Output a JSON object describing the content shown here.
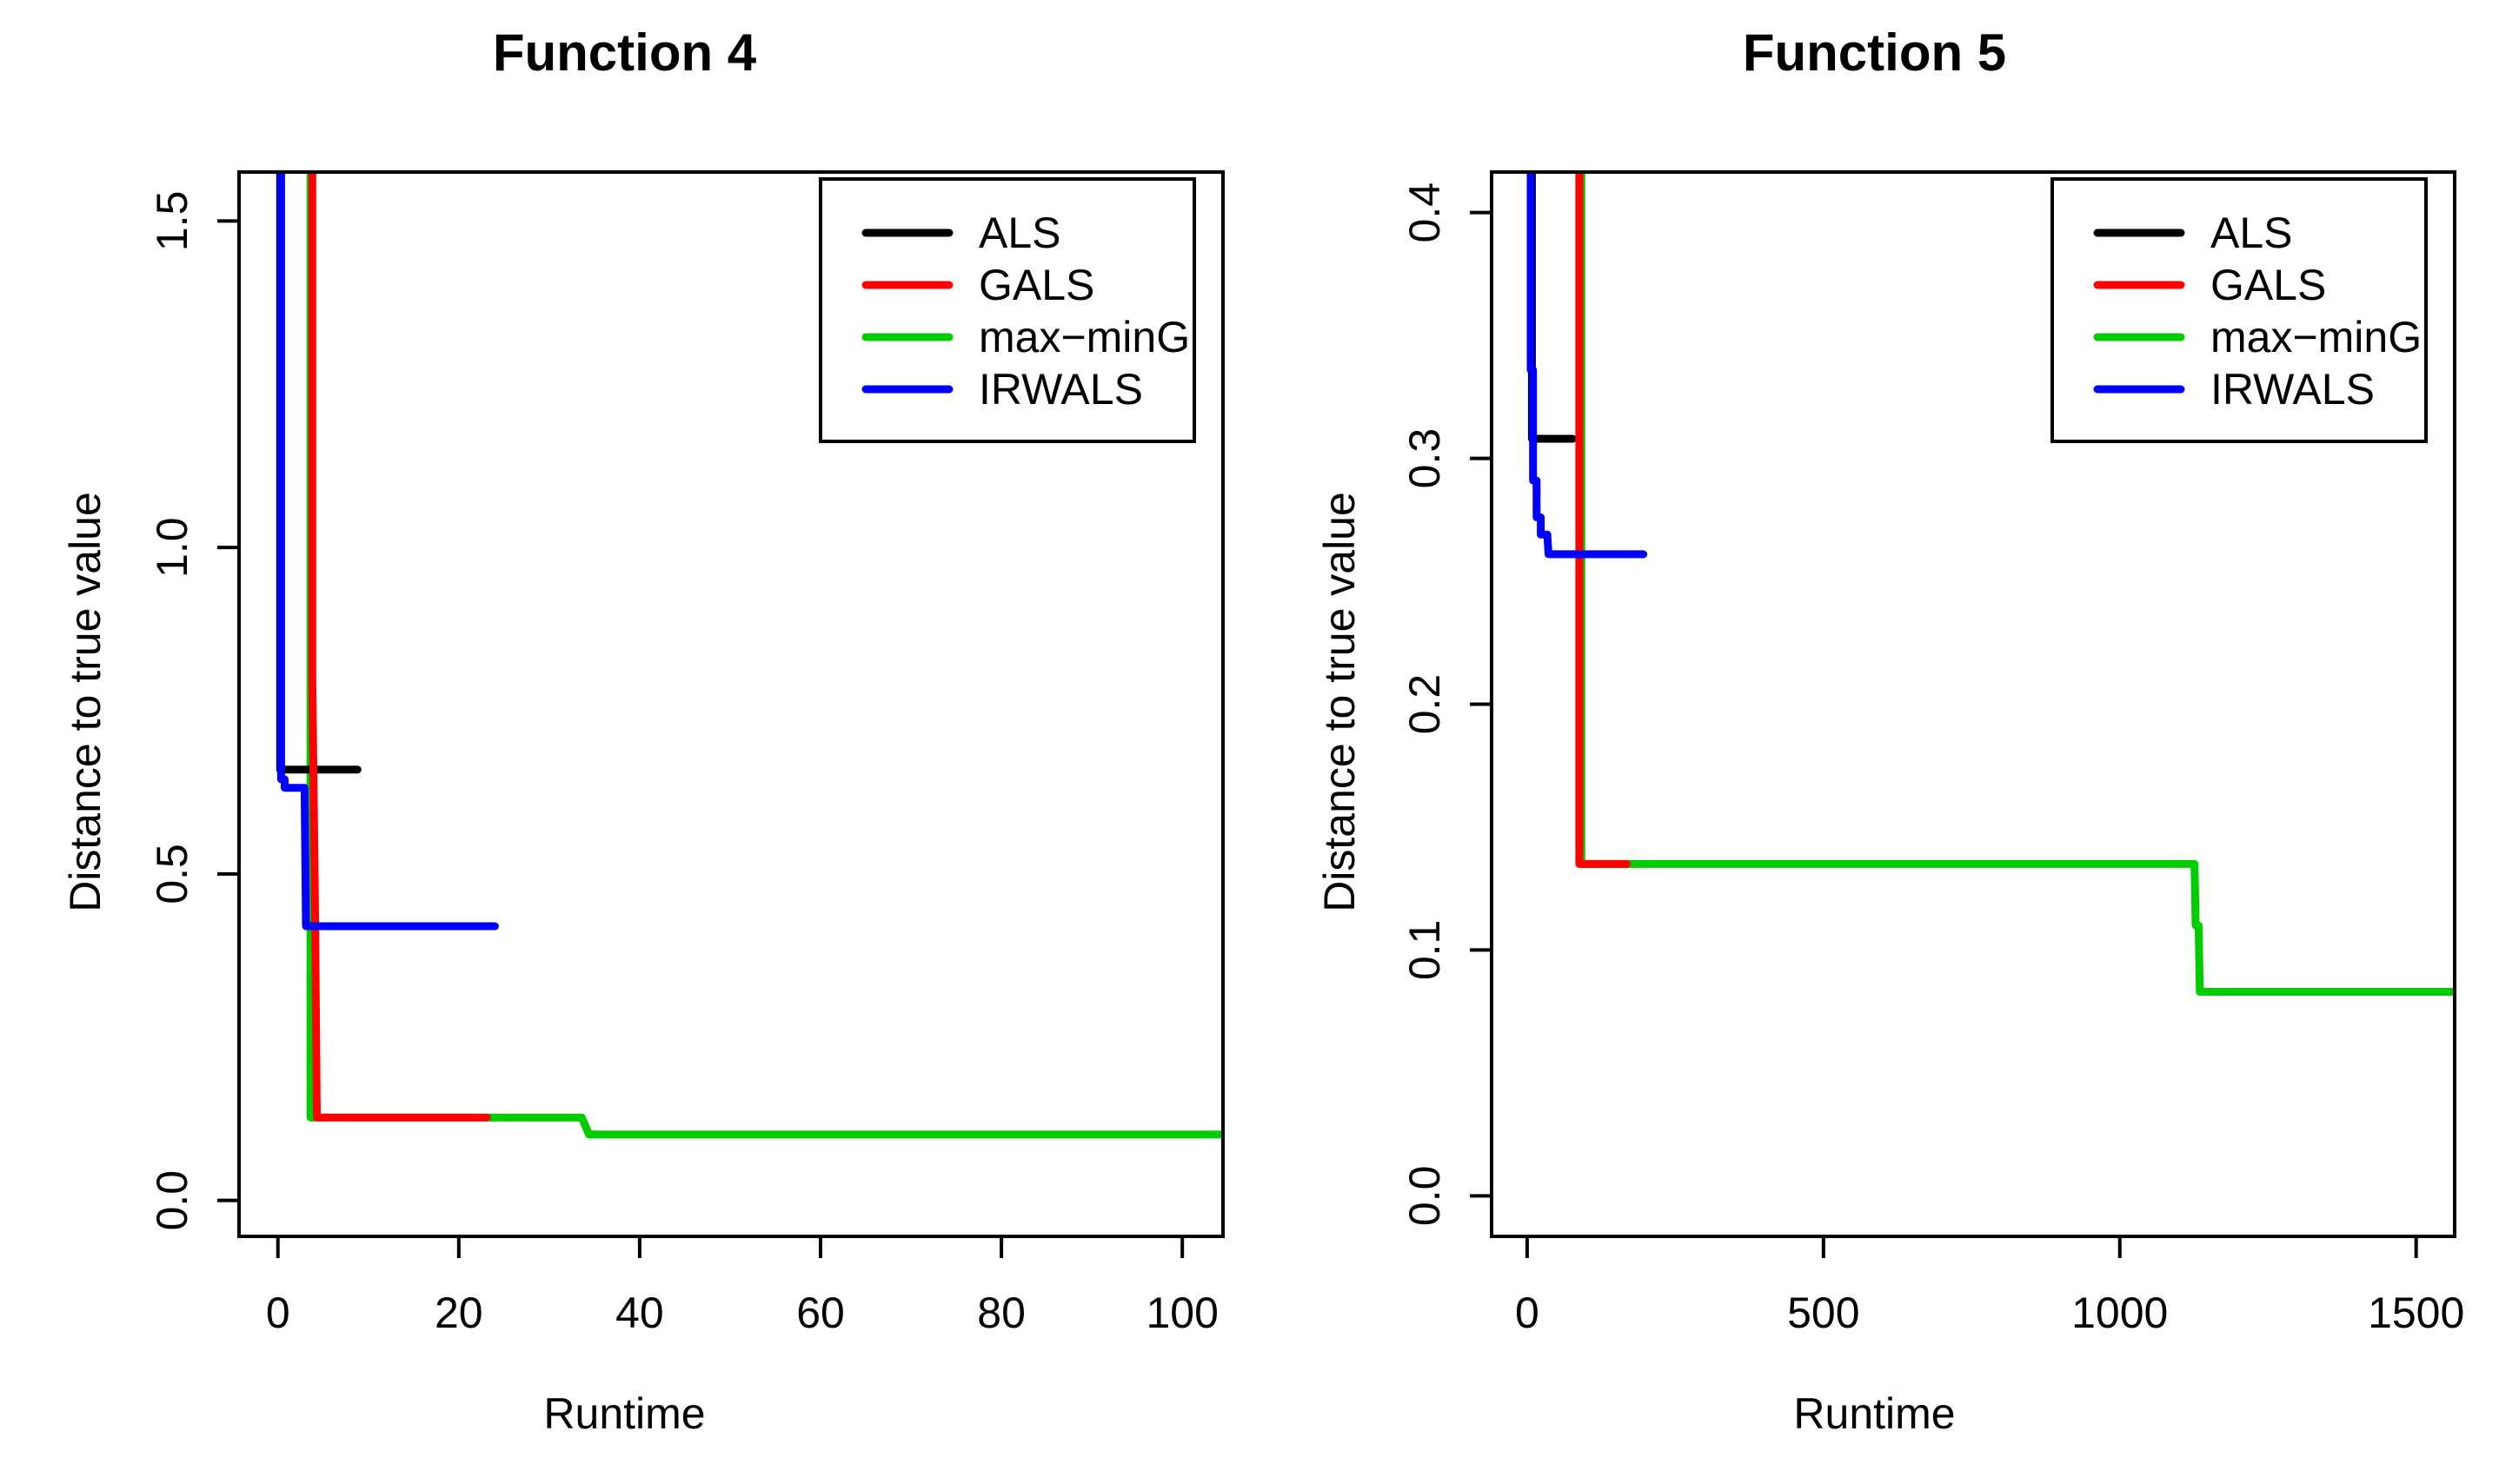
{
  "figure": {
    "background": "#ffffff",
    "axis_color": "#000000",
    "text_color": "#000000"
  },
  "chart_data": [
    {
      "type": "line",
      "step_style": true,
      "title": "Function 4",
      "xlabel": "Runtime",
      "ylabel": "Distance to true value",
      "xlim": [
        -4.3,
        104.5
      ],
      "ylim": [
        -0.055,
        1.575
      ],
      "grid": false,
      "xticks": {
        "values": [
          0,
          20,
          40,
          60,
          80,
          100
        ],
        "labels": [
          "0",
          "20",
          "40",
          "60",
          "80",
          "100"
        ]
      },
      "yticks": {
        "values": [
          0.0,
          0.5,
          1.0,
          1.5
        ],
        "labels": [
          "0.0",
          "0.5",
          "1.0",
          "1.5"
        ]
      },
      "legend": {
        "position": "top-right",
        "entries": [
          "ALS",
          "GALS",
          "max−minG",
          "IRWALS"
        ],
        "colors": [
          "#000000",
          "#FF0000",
          "#00CC00",
          "#0000FF"
        ]
      },
      "series": [
        {
          "name": "max-minG",
          "color": "#00CC00",
          "draw_order": 1,
          "points": [
            [
              3.6,
              1.63
            ],
            [
              3.6,
              0.127
            ],
            [
              33.6,
              0.127
            ],
            [
              34.4,
              0.101
            ],
            [
              104.6,
              0.101
            ]
          ]
        },
        {
          "name": "ALS",
          "color": "#000000",
          "draw_order": 2,
          "points": [
            [
              0.25,
              1.63
            ],
            [
              0.25,
              0.66
            ],
            [
              8.8,
              0.66
            ]
          ]
        },
        {
          "name": "GALS",
          "color": "#FF0000",
          "draw_order": 3,
          "points": [
            [
              3.8,
              1.63
            ],
            [
              3.8,
              0.8
            ],
            [
              4.1,
              0.45
            ],
            [
              4.3,
              0.127
            ],
            [
              23.1,
              0.127
            ]
          ]
        },
        {
          "name": "IRWALS",
          "color": "#0000FF",
          "draw_order": 4,
          "points": [
            [
              0.35,
              1.63
            ],
            [
              0.35,
              0.645
            ],
            [
              0.75,
              0.645
            ],
            [
              0.75,
              0.632
            ],
            [
              2.95,
              0.632
            ],
            [
              3.1,
              0.42
            ],
            [
              24.0,
              0.42
            ]
          ]
        }
      ]
    },
    {
      "type": "line",
      "step_style": true,
      "title": "Function 5",
      "xlabel": "Runtime",
      "ylabel": "Distance to true value",
      "xlim": [
        -60,
        1565
      ],
      "ylim": [
        -0.0165,
        0.4165
      ],
      "grid": false,
      "xticks": {
        "values": [
          0,
          500,
          1000,
          1500
        ],
        "labels": [
          "0",
          "500",
          "1000",
          "1500"
        ]
      },
      "yticks": {
        "values": [
          0.0,
          0.1,
          0.2,
          0.3,
          0.4
        ],
        "labels": [
          "0.0",
          "0.1",
          "0.2",
          "0.3",
          "0.4"
        ]
      },
      "legend": {
        "position": "top-right",
        "entries": [
          "ALS",
          "GALS",
          "max−minG",
          "IRWALS"
        ],
        "colors": [
          "#000000",
          "#FF0000",
          "#00CC00",
          "#0000FF"
        ]
      },
      "series": [
        {
          "name": "max-minG",
          "color": "#00CC00",
          "draw_order": 1,
          "points": [
            [
              91.5,
              0.43
            ],
            [
              91.5,
              0.135
            ],
            [
              1126,
              0.135
            ],
            [
              1128,
              0.11
            ],
            [
              1133,
              0.11
            ],
            [
              1135,
              0.083
            ],
            [
              1566,
              0.083
            ]
          ]
        },
        {
          "name": "ALS",
          "color": "#000000",
          "draw_order": 2,
          "points": [
            [
              8,
              0.43
            ],
            [
              8,
              0.308
            ],
            [
              77,
              0.308
            ]
          ]
        },
        {
          "name": "GALS",
          "color": "#FF0000",
          "draw_order": 3,
          "points": [
            [
              88,
              0.43
            ],
            [
              88,
              0.135
            ],
            [
              168,
              0.135
            ]
          ]
        },
        {
          "name": "IRWALS",
          "color": "#0000FF",
          "draw_order": 4,
          "points": [
            [
              6,
              0.43
            ],
            [
              6,
              0.336
            ],
            [
              10,
              0.336
            ],
            [
              10,
              0.291
            ],
            [
              16,
              0.291
            ],
            [
              16,
              0.276
            ],
            [
              23,
              0.276
            ],
            [
              23,
              0.269
            ],
            [
              34,
              0.269
            ],
            [
              36,
              0.261
            ],
            [
              196,
              0.261
            ]
          ]
        }
      ]
    }
  ]
}
